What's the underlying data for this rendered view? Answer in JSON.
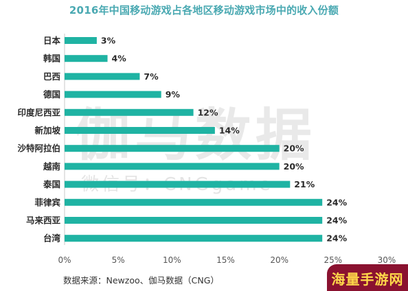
{
  "chart_data": {
    "type": "bar",
    "orientation": "horizontal",
    "title": "2016年中国移动游戏占各地区移动游戏市场中的收入份额",
    "categories": [
      "日本",
      "韩国",
      "巴西",
      "德国",
      "印度尼西亚",
      "新加坡",
      "沙特阿拉伯",
      "越南",
      "泰国",
      "菲律宾",
      "马来西亚",
      "台湾"
    ],
    "values": [
      3,
      4,
      7,
      9,
      12,
      14,
      20,
      20,
      21,
      24,
      24,
      24
    ],
    "value_labels": [
      "3%",
      "4%",
      "7%",
      "9%",
      "12%",
      "14%",
      "20%",
      "20%",
      "21%",
      "24%",
      "24%",
      "24%"
    ],
    "xlim": [
      0,
      30
    ],
    "xticks": [
      "0%",
      "5%",
      "10%",
      "15%",
      "20%",
      "25%",
      "30%"
    ],
    "xlabel": "",
    "ylabel": "",
    "grid": false,
    "legend": "none",
    "bar_color": "#1fb3a3",
    "source": "数据来源：Newzoo、伽马数据（CNG）"
  },
  "watermark": {
    "main": "伽马数据",
    "sub": "微信号：CNGgame"
  },
  "badge": {
    "text": "海量手游网",
    "background": "#8a1230",
    "color": "#ffd84a"
  }
}
